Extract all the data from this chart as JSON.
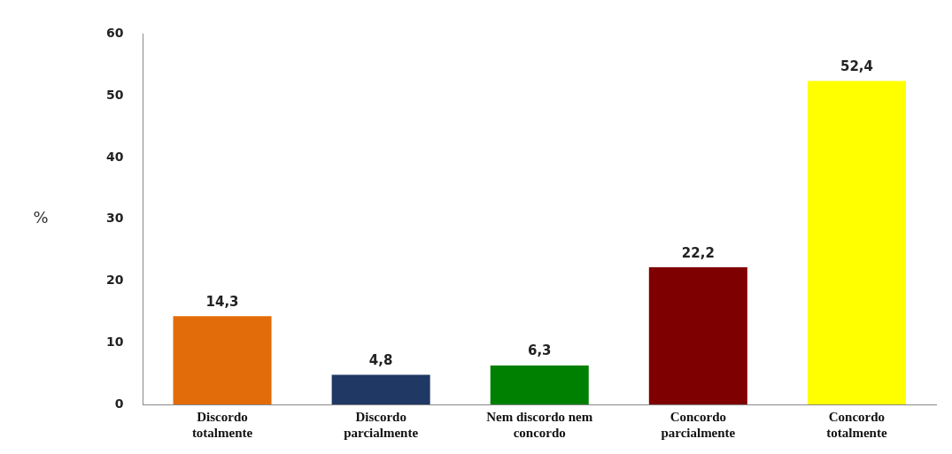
{
  "chart_data": {
    "type": "bar",
    "ylabel": "%",
    "categories": [
      "Discordo totalmente",
      "Discordo parcialmente",
      "Nem discordo nem concordo",
      "Concordo parcialmente",
      "Concordo totalmente"
    ],
    "values": [
      14.3,
      4.8,
      6.3,
      22.2,
      52.4
    ],
    "colors": [
      "#e36c0a",
      "#1f3864",
      "#008000",
      "#7f0000",
      "#ffff00"
    ],
    "value_labels": [
      "14,3",
      "4,8",
      "6,3",
      "22,2",
      "52,4"
    ],
    "ylim": [
      0,
      60
    ],
    "yticks": [
      0,
      10,
      20,
      30,
      40,
      50,
      60
    ],
    "grid": false,
    "legend": false
  }
}
